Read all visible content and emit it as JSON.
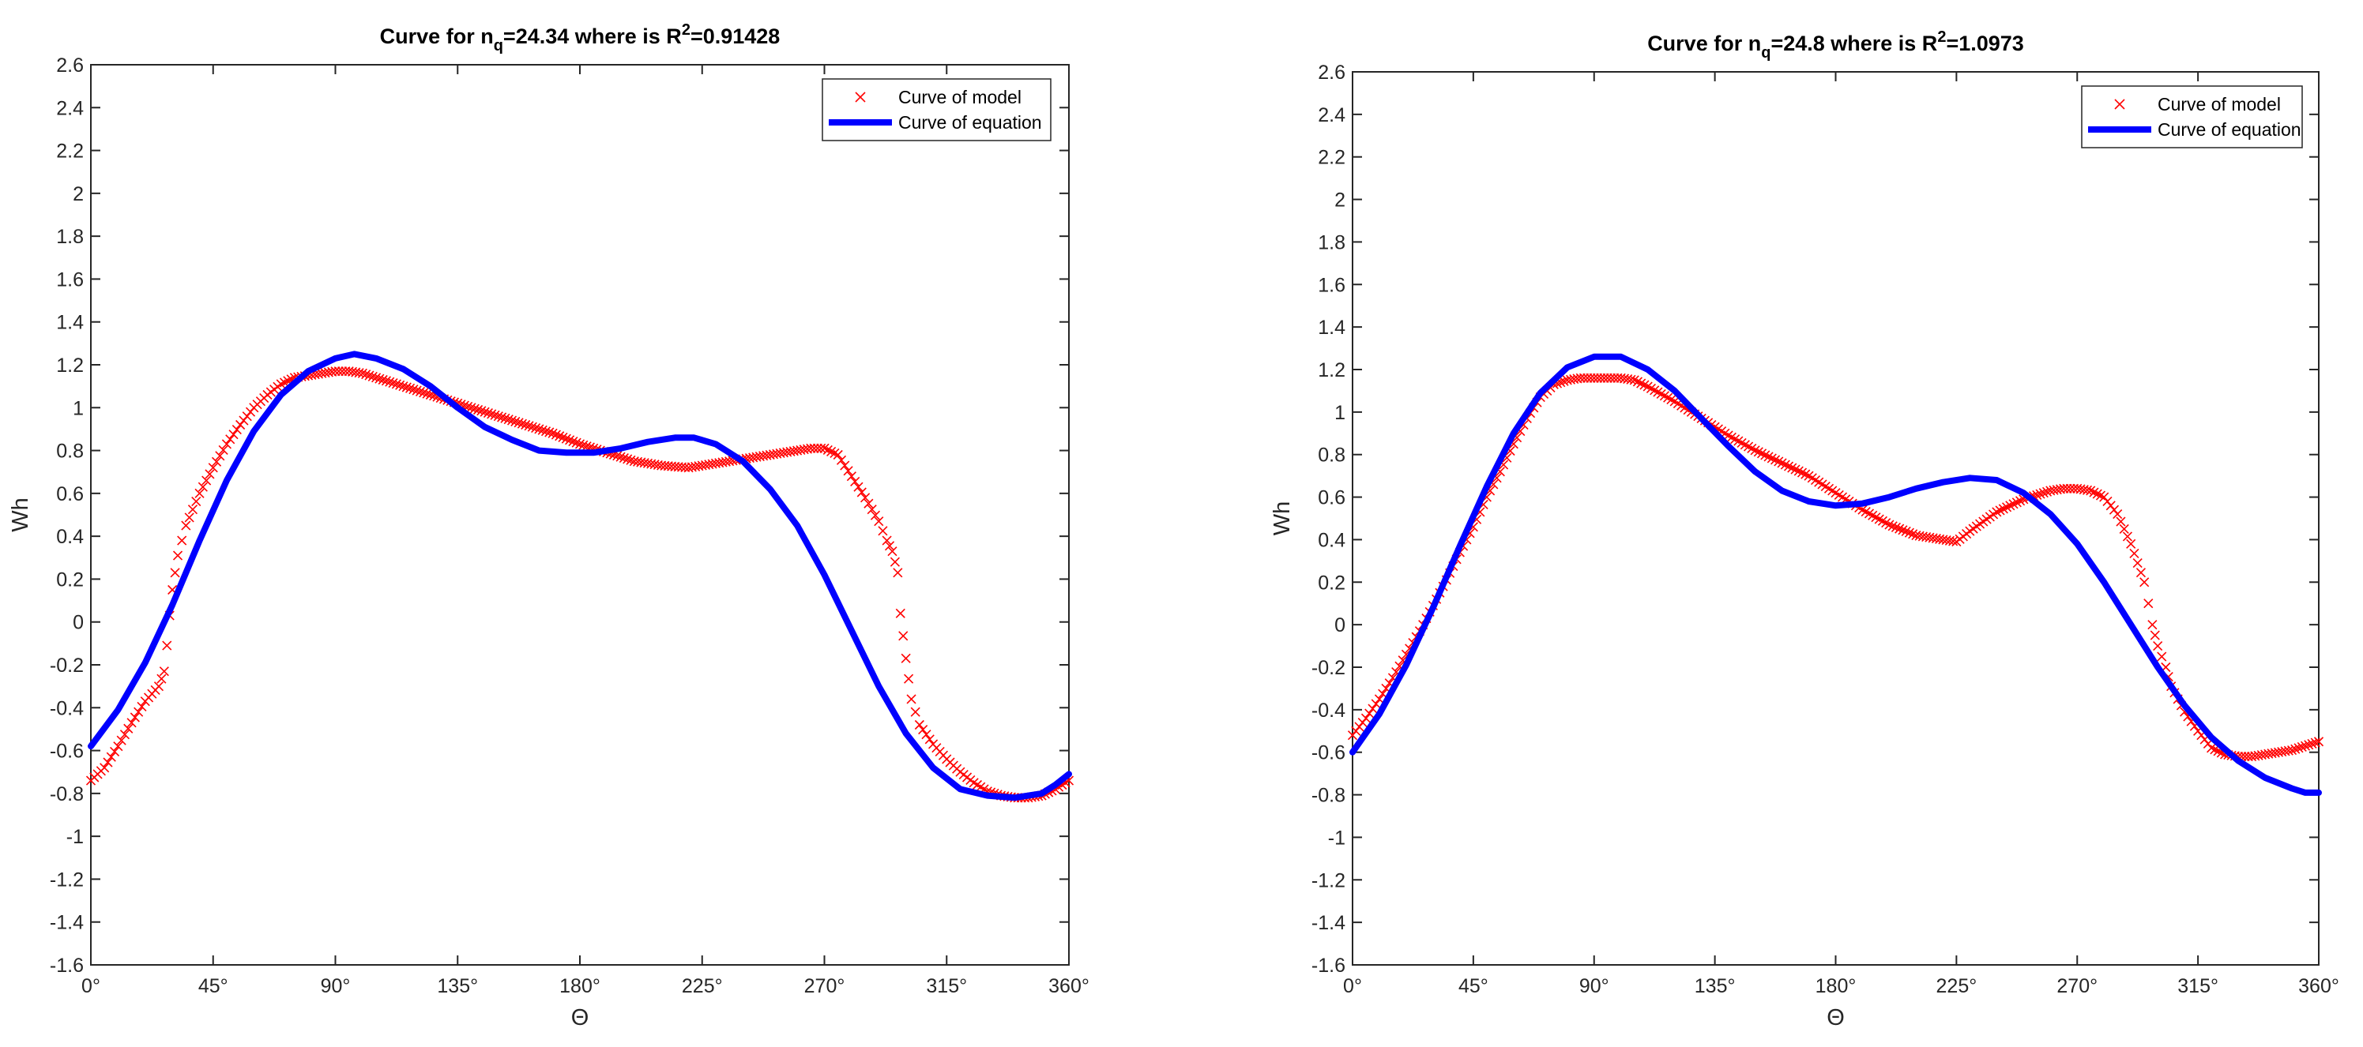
{
  "chart_data": [
    {
      "type": "scatter+line",
      "title": {
        "prefix": "Curve for n",
        "subscript": "q",
        "middle": "=24.34 where is R",
        "superscript": "2",
        "suffix": "=0.91428"
      },
      "xlabel": "Θ",
      "ylabel": "Wh",
      "xlim": [
        0,
        360
      ],
      "ylim": [
        -1.6,
        2.6
      ],
      "x_ticks": [
        0,
        45,
        90,
        135,
        180,
        225,
        270,
        315,
        360
      ],
      "x_tick_labels": [
        "0°",
        "45°",
        "90°",
        "135°",
        "180°",
        "225°",
        "270°",
        "315°",
        "360°"
      ],
      "y_ticks": [
        2.6,
        2.4,
        2.2,
        2,
        1.8,
        1.6,
        1.4,
        1.2,
        1,
        0.8,
        0.6,
        0.4,
        0.2,
        0,
        -0.2,
        -0.4,
        -0.6,
        -0.8,
        -1,
        -1.2,
        -1.4,
        -1.6
      ],
      "y_tick_labels": [
        "2.6",
        "2.4",
        "2.2",
        "2",
        "1.8",
        "1.6",
        "1.4",
        "1.2",
        "1",
        "0.8",
        "0.6",
        "0.4",
        "0.2",
        "0",
        "-0.2",
        "-0.4",
        "-0.6",
        "-0.8",
        "-1",
        "-1.2",
        "-1.4",
        "-1.6"
      ],
      "grid": true,
      "legend_position": "top-right",
      "series": [
        {
          "name": "Curve of model",
          "style": "markers-x",
          "color": "#ff0000",
          "x": [
            0,
            5,
            10,
            15,
            20,
            25,
            27,
            28,
            29,
            30,
            31,
            32,
            35,
            40,
            45,
            50,
            55,
            60,
            65,
            70,
            75,
            80,
            85,
            90,
            95,
            100,
            105,
            110,
            120,
            130,
            140,
            150,
            160,
            170,
            180,
            190,
            200,
            210,
            220,
            230,
            240,
            250,
            260,
            265,
            270,
            275,
            280,
            285,
            290,
            293,
            295,
            297,
            298,
            300,
            302,
            305,
            310,
            315,
            320,
            325,
            330,
            335,
            340,
            345,
            350,
            355,
            360
          ],
          "y": [
            -0.74,
            -0.68,
            -0.58,
            -0.47,
            -0.37,
            -0.3,
            -0.23,
            -0.11,
            0.03,
            0.15,
            0.23,
            0.31,
            0.45,
            0.6,
            0.72,
            0.83,
            0.92,
            1.0,
            1.06,
            1.11,
            1.14,
            1.15,
            1.16,
            1.17,
            1.17,
            1.16,
            1.14,
            1.12,
            1.08,
            1.04,
            1.0,
            0.96,
            0.92,
            0.88,
            0.83,
            0.79,
            0.75,
            0.73,
            0.72,
            0.74,
            0.76,
            0.78,
            0.8,
            0.81,
            0.81,
            0.78,
            0.68,
            0.58,
            0.47,
            0.38,
            0.33,
            0.23,
            0.04,
            -0.17,
            -0.36,
            -0.48,
            -0.57,
            -0.64,
            -0.7,
            -0.75,
            -0.79,
            -0.81,
            -0.82,
            -0.82,
            -0.81,
            -0.78,
            -0.74
          ]
        },
        {
          "name": "Curve of equation",
          "style": "line",
          "color": "#0000ff",
          "x": [
            0,
            10,
            20,
            30,
            40,
            50,
            60,
            70,
            80,
            90,
            97,
            105,
            115,
            125,
            135,
            145,
            155,
            165,
            175,
            185,
            195,
            205,
            215,
            222,
            230,
            240,
            250,
            260,
            270,
            280,
            290,
            300,
            310,
            320,
            330,
            340,
            350,
            355,
            360
          ],
          "y": [
            -0.58,
            -0.41,
            -0.19,
            0.08,
            0.38,
            0.66,
            0.89,
            1.06,
            1.17,
            1.23,
            1.25,
            1.23,
            1.18,
            1.1,
            1.0,
            0.91,
            0.85,
            0.8,
            0.79,
            0.79,
            0.81,
            0.84,
            0.86,
            0.86,
            0.83,
            0.75,
            0.62,
            0.45,
            0.22,
            -0.04,
            -0.3,
            -0.52,
            -0.68,
            -0.78,
            -0.81,
            -0.82,
            -0.8,
            -0.76,
            -0.71
          ]
        }
      ]
    },
    {
      "type": "scatter+line",
      "title": {
        "prefix": "Curve for n",
        "subscript": "q",
        "middle": "=24.8 where is R",
        "superscript": "2",
        "suffix": "=1.0973"
      },
      "xlabel": "Θ",
      "ylabel": "Wh",
      "xlim": [
        0,
        360
      ],
      "ylim": [
        -1.6,
        2.6
      ],
      "x_ticks": [
        0,
        45,
        90,
        135,
        180,
        225,
        270,
        315,
        360
      ],
      "x_tick_labels": [
        "0°",
        "45°",
        "90°",
        "135°",
        "180°",
        "225°",
        "270°",
        "315°",
        "360°"
      ],
      "y_ticks": [
        2.6,
        2.4,
        2.2,
        2,
        1.8,
        1.6,
        1.4,
        1.2,
        1,
        0.8,
        0.6,
        0.4,
        0.2,
        0,
        -0.2,
        -0.4,
        -0.6,
        -0.8,
        -1,
        -1.2,
        -1.4,
        -1.6
      ],
      "y_tick_labels": [
        "2.6",
        "2.4",
        "2.2",
        "2",
        "1.8",
        "1.6",
        "1.4",
        "1.2",
        "1",
        "0.8",
        "0.6",
        "0.4",
        "0.2",
        "0",
        "-0.2",
        "-0.4",
        "-0.6",
        "-0.8",
        "-1",
        "-1.2",
        "-1.4",
        "-1.6"
      ],
      "grid": true,
      "legend_position": "top-right",
      "series": [
        {
          "name": "Curve of model",
          "style": "markers-x",
          "color": "#ff0000",
          "x": [
            0,
            5,
            10,
            15,
            20,
            25,
            30,
            35,
            40,
            45,
            50,
            55,
            60,
            65,
            70,
            75,
            80,
            85,
            90,
            95,
            100,
            105,
            110,
            120,
            130,
            140,
            150,
            160,
            170,
            180,
            190,
            200,
            210,
            220,
            225,
            230,
            240,
            250,
            260,
            265,
            270,
            275,
            280,
            285,
            290,
            295,
            298,
            300,
            303,
            305,
            310,
            315,
            320,
            325,
            330,
            335,
            340,
            345,
            350,
            355,
            360
          ],
          "y": [
            -0.52,
            -0.44,
            -0.35,
            -0.25,
            -0.14,
            -0.03,
            0.09,
            0.21,
            0.34,
            0.46,
            0.6,
            0.72,
            0.85,
            0.97,
            1.07,
            1.13,
            1.15,
            1.16,
            1.16,
            1.16,
            1.16,
            1.15,
            1.12,
            1.05,
            0.97,
            0.89,
            0.82,
            0.76,
            0.7,
            0.62,
            0.54,
            0.47,
            0.42,
            0.4,
            0.39,
            0.44,
            0.53,
            0.59,
            0.63,
            0.64,
            0.64,
            0.63,
            0.6,
            0.52,
            0.38,
            0.2,
            0.0,
            -0.1,
            -0.2,
            -0.29,
            -0.41,
            -0.5,
            -0.58,
            -0.61,
            -0.62,
            -0.62,
            -0.61,
            -0.6,
            -0.59,
            -0.57,
            -0.55
          ]
        },
        {
          "name": "Curve of equation",
          "style": "line",
          "color": "#0000ff",
          "x": [
            0,
            10,
            20,
            30,
            40,
            50,
            60,
            70,
            80,
            90,
            100,
            110,
            120,
            130,
            140,
            150,
            160,
            170,
            180,
            190,
            200,
            210,
            220,
            230,
            240,
            250,
            260,
            270,
            280,
            290,
            300,
            310,
            320,
            330,
            340,
            350,
            355,
            360
          ],
          "y": [
            -0.6,
            -0.42,
            -0.19,
            0.08,
            0.37,
            0.65,
            0.9,
            1.09,
            1.21,
            1.26,
            1.26,
            1.2,
            1.1,
            0.97,
            0.84,
            0.72,
            0.63,
            0.58,
            0.56,
            0.57,
            0.6,
            0.64,
            0.67,
            0.69,
            0.68,
            0.62,
            0.52,
            0.38,
            0.2,
            0.0,
            -0.2,
            -0.38,
            -0.53,
            -0.64,
            -0.72,
            -0.77,
            -0.79,
            -0.79
          ]
        }
      ]
    }
  ]
}
